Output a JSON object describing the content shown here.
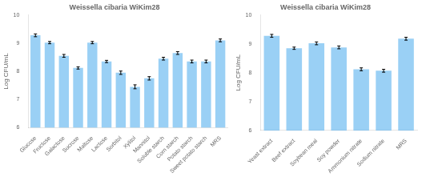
{
  "chart_data": [
    {
      "type": "bar",
      "title": "Weissella cibaria WiKim28",
      "categories": [
        "Glucose",
        "Fructose",
        "Galactose",
        "Sucrose",
        "Maltose",
        "Lactose",
        "Sorbitol",
        "Xylitol",
        "Mannitol",
        "Soluble starch",
        "Corn starch",
        "Potato starch",
        "Sweet potato starch",
        "MRS"
      ],
      "values": [
        9.28,
        9.02,
        8.55,
        8.12,
        9.02,
        8.35,
        7.95,
        7.45,
        7.75,
        8.45,
        8.65,
        8.35,
        8.35,
        9.1
      ],
      "errors": [
        0.05,
        0.04,
        0.05,
        0.04,
        0.04,
        0.04,
        0.06,
        0.07,
        0.06,
        0.05,
        0.05,
        0.05,
        0.05,
        0.05
      ],
      "y_label": "Log CFU/mL",
      "ylim": [
        6,
        10
      ],
      "yticks": [
        6,
        7,
        8,
        9,
        10
      ],
      "grid": false
    },
    {
      "type": "bar",
      "title": "Weissella cibaria WiKim28",
      "categories": [
        "Yeast extract",
        "Beef extract",
        "Soybean meal",
        "Soy powder",
        "Ammonium nitrate",
        "Sodium nitrate",
        "MRS"
      ],
      "values": [
        9.28,
        8.85,
        9.02,
        8.88,
        8.12,
        8.07,
        9.18
      ],
      "errors": [
        0.05,
        0.04,
        0.05,
        0.05,
        0.05,
        0.05,
        0.05
      ],
      "y_label": "Log CFU/mL",
      "ylim": [
        6,
        10
      ],
      "yticks": [
        6,
        7,
        8,
        9,
        10
      ],
      "grid": false
    }
  ]
}
